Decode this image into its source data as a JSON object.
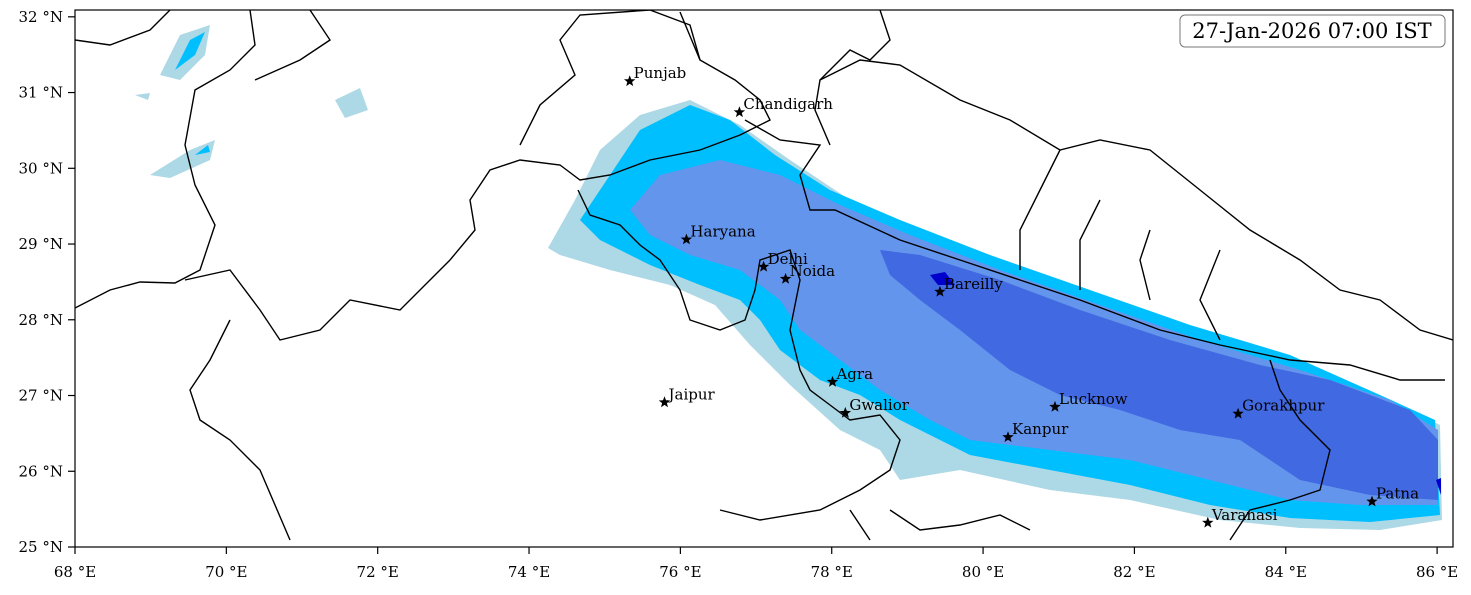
{
  "map": {
    "timestamp": "27-Jan-2026 07:00 IST",
    "xlim": [
      68,
      86.21
    ],
    "ylim": [
      25,
      32.09
    ],
    "xticks": [
      {
        "value": 68,
        "label": "68 °E"
      },
      {
        "value": 70,
        "label": "70 °E"
      },
      {
        "value": 72,
        "label": "72 °E"
      },
      {
        "value": 74,
        "label": "74 °E"
      },
      {
        "value": 76,
        "label": "76 °E"
      },
      {
        "value": 78,
        "label": "78 °E"
      },
      {
        "value": 80,
        "label": "80 °E"
      },
      {
        "value": 82,
        "label": "82 °E"
      },
      {
        "value": 84,
        "label": "84 °E"
      },
      {
        "value": 86,
        "label": "86 °E"
      }
    ],
    "yticks": [
      {
        "value": 25,
        "label": "25 °N"
      },
      {
        "value": 26,
        "label": "26 °N"
      },
      {
        "value": 27,
        "label": "27 °N"
      },
      {
        "value": 28,
        "label": "28 °N"
      },
      {
        "value": 29,
        "label": "29 °N"
      },
      {
        "value": 30,
        "label": "30 °N"
      },
      {
        "value": 31,
        "label": "31 °N"
      },
      {
        "value": 32,
        "label": "32 °N"
      }
    ],
    "cities": [
      {
        "name": "Punjab",
        "lon": 75.33,
        "lat": 31.15
      },
      {
        "name": "Chandigarh",
        "lon": 76.78,
        "lat": 30.74
      },
      {
        "name": "Haryana",
        "lon": 76.08,
        "lat": 29.06
      },
      {
        "name": "Delhi",
        "lon": 77.1,
        "lat": 28.7
      },
      {
        "name": "Noida",
        "lon": 77.39,
        "lat": 28.54
      },
      {
        "name": "Bareilly",
        "lon": 79.43,
        "lat": 28.37
      },
      {
        "name": "Agra",
        "lon": 78.01,
        "lat": 27.18
      },
      {
        "name": "Jaipur",
        "lon": 75.79,
        "lat": 26.91
      },
      {
        "name": "Gwalior",
        "lon": 78.18,
        "lat": 26.77
      },
      {
        "name": "Lucknow",
        "lon": 80.95,
        "lat": 26.85
      },
      {
        "name": "Kanpur",
        "lon": 80.33,
        "lat": 26.45
      },
      {
        "name": "Gorakhpur",
        "lon": 83.37,
        "lat": 26.76
      },
      {
        "name": "Varanasi",
        "lon": 82.97,
        "lat": 25.32
      },
      {
        "name": "Patna",
        "lon": 85.14,
        "lat": 25.6
      }
    ]
  }
}
